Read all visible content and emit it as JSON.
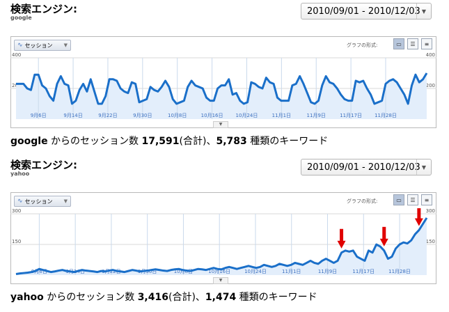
{
  "panels": [
    {
      "title": "検索エンジン:",
      "engine": "google",
      "date_range": "2010/09/01 - 2010/12/03",
      "metric_selector": "セッション",
      "graph_format_label": "グラフの形式:",
      "summary": {
        "engine": "google",
        "pre_sessions": "からのセッション数",
        "sessions": "17,591",
        "mid": "(合計)、",
        "keywords": "5,783",
        "post": "種類のキーワード"
      },
      "chart_data": {
        "type": "area",
        "ylim": [
          0,
          400
        ],
        "yticks": [
          "400",
          "200"
        ],
        "xtick_labels": [
          "9月6日",
          "9月14日",
          "9月22日",
          "9月30日",
          "10月8日",
          "10月16日",
          "10月24日",
          "11月1日",
          "11月9日",
          "11月17日",
          "11月28日"
        ],
        "values": [
          230,
          230,
          230,
          200,
          190,
          290,
          290,
          220,
          200,
          150,
          120,
          230,
          280,
          230,
          220,
          100,
          120,
          190,
          230,
          180,
          260,
          180,
          100,
          100,
          150,
          260,
          260,
          250,
          200,
          180,
          170,
          240,
          230,
          110,
          120,
          130,
          210,
          190,
          180,
          210,
          250,
          210,
          130,
          100,
          110,
          120,
          210,
          250,
          220,
          210,
          200,
          140,
          120,
          120,
          200,
          220,
          220,
          260,
          160,
          170,
          120,
          100,
          110,
          240,
          230,
          210,
          200,
          270,
          240,
          230,
          140,
          120,
          120,
          120,
          220,
          230,
          280,
          230,
          170,
          110,
          100,
          120,
          220,
          280,
          240,
          230,
          200,
          160,
          130,
          120,
          120,
          250,
          240,
          250,
          200,
          160,
          100,
          110,
          120,
          230,
          250,
          260,
          240,
          200,
          160,
          100,
          220,
          290,
          240,
          260,
          300
        ]
      }
    },
    {
      "title": "検索エンジン:",
      "engine": "yahoo",
      "date_range": "2010/09/01 - 2010/12/03",
      "metric_selector": "セッション",
      "graph_format_label": "グラフの形式:",
      "summary": {
        "engine": "yahoo",
        "pre_sessions": "からのセッション数",
        "sessions": "3,416",
        "mid": "(合計)、",
        "keywords": "1,474",
        "post": "種類のキーワード"
      },
      "chart_data": {
        "type": "area",
        "ylim": [
          0,
          300
        ],
        "yticks": [
          "300",
          "150"
        ],
        "xtick_labels": [
          "9月6日",
          "9月14日",
          "9月22日",
          "9月30日",
          "10月8日",
          "10月16日",
          "10月24日",
          "11月1日",
          "11月9日",
          "11月17日",
          "11月28日"
        ],
        "values": [
          5,
          8,
          10,
          12,
          15,
          20,
          30,
          25,
          20,
          15,
          18,
          22,
          25,
          20,
          18,
          15,
          20,
          25,
          22,
          20,
          18,
          15,
          20,
          18,
          22,
          25,
          20,
          18,
          15,
          20,
          25,
          22,
          18,
          20,
          22,
          25,
          28,
          25,
          22,
          20,
          25,
          28,
          30,
          25,
          22,
          20,
          25,
          30,
          28,
          25,
          30,
          35,
          30,
          28,
          35,
          40,
          35,
          30,
          35,
          40,
          45,
          40,
          35,
          40,
          50,
          45,
          40,
          45,
          55,
          50,
          45,
          50,
          60,
          55,
          50,
          60,
          70,
          60,
          55,
          70,
          80,
          70,
          60,
          70,
          110,
          120,
          115,
          120,
          90,
          80,
          70,
          120,
          110,
          150,
          140,
          120,
          80,
          90,
          130,
          150,
          160,
          155,
          170,
          200,
          220,
          250,
          280
        ],
        "annotations": [
          {
            "type": "arrow",
            "color": "#e00000",
            "index": 84
          },
          {
            "type": "arrow",
            "color": "#e00000",
            "index": 95
          },
          {
            "type": "arrow",
            "color": "#e00000",
            "index": 104
          }
        ]
      }
    }
  ],
  "colors": {
    "line": "#1a6fc9",
    "fill": "#e3eefb",
    "grid": "#d9d9d9",
    "arrow": "#e00000"
  }
}
